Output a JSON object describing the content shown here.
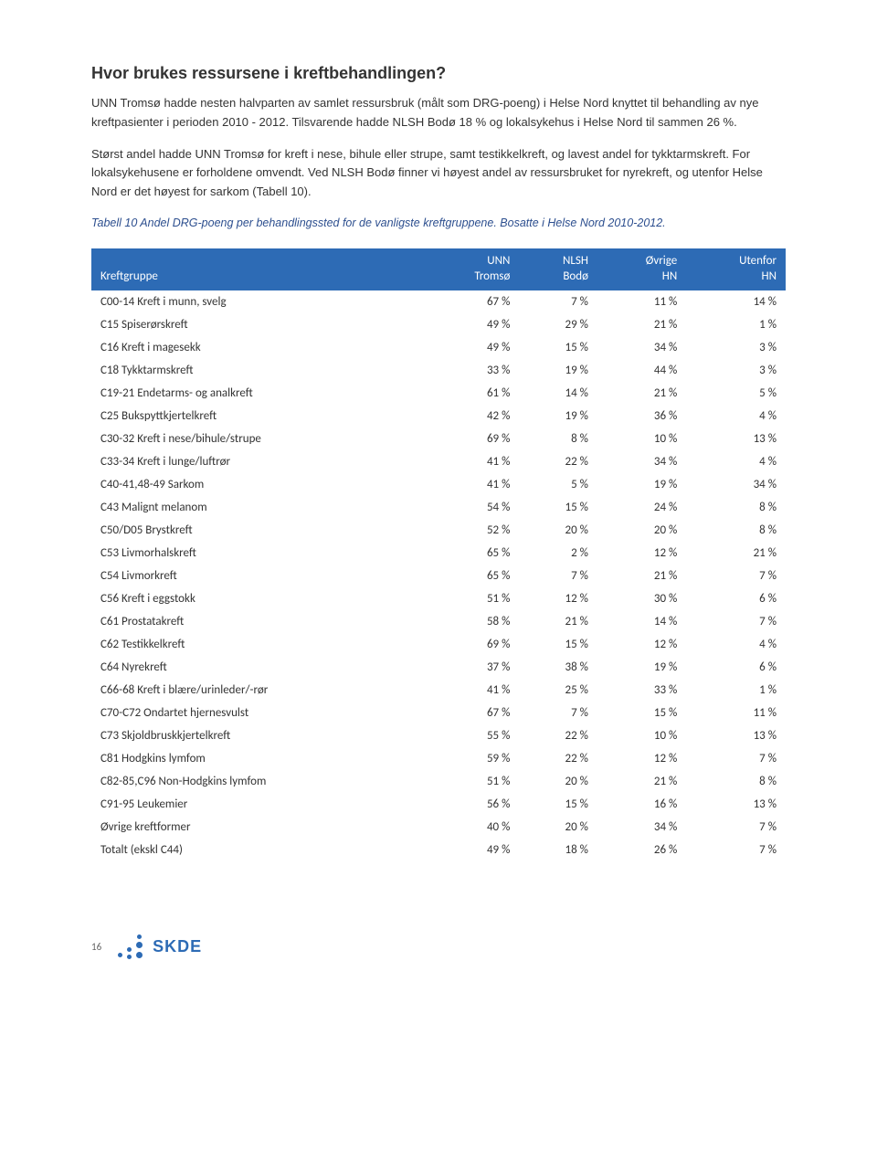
{
  "heading": "Hvor brukes ressursene i kreftbehandlingen?",
  "paragraphs": {
    "p1": "UNN Tromsø hadde nesten halvparten av samlet ressursbruk (målt som DRG-poeng) i Helse Nord knyttet til behandling av nye kreftpasienter i perioden 2010 - 2012. Tilsvarende hadde NLSH Bodø  18 % og lokalsykehus i Helse Nord til sammen 26 %.",
    "p2": "Størst andel hadde UNN Tromsø for kreft i nese, bihule eller strupe, samt testikkelkreft, og lavest andel for tykktarmskreft. For lokalsykehusene er forholdene omvendt. Ved NLSH Bodø finner vi høyest andel av ressursbruket for nyrekreft, og utenfor Helse Nord er det høyest for sarkom (Tabell 10)."
  },
  "caption": "Tabell 10 Andel DRG-poeng per behandlingssted for de vanligste kreftgruppene. Bosatte i Helse Nord 2010-2012.",
  "table": {
    "header_bg": "#2d6bb5",
    "header_fg": "#ffffff",
    "columns": [
      {
        "line1": "",
        "line2": "Kreftgruppe"
      },
      {
        "line1": "UNN",
        "line2": "Tromsø"
      },
      {
        "line1": "NLSH",
        "line2": "Bodø"
      },
      {
        "line1": "Øvrige",
        "line2": "HN"
      },
      {
        "line1": "Utenfor",
        "line2": "HN"
      }
    ],
    "rows": [
      {
        "label": "C00-14 Kreft i munn, svelg",
        "c1": "67 %",
        "c2": "7 %",
        "c3": "11 %",
        "c4": "14 %"
      },
      {
        "label": "C15 Spiserørskreft",
        "c1": "49 %",
        "c2": "29 %",
        "c3": "21 %",
        "c4": "1 %"
      },
      {
        "label": "C16 Kreft i magesekk",
        "c1": "49 %",
        "c2": "15 %",
        "c3": "34 %",
        "c4": "3 %"
      },
      {
        "label": "C18 Tykktarmskreft",
        "c1": "33 %",
        "c2": "19 %",
        "c3": "44 %",
        "c4": "3 %"
      },
      {
        "label": "C19-21 Endetarms- og analkreft",
        "c1": "61 %",
        "c2": "14 %",
        "c3": "21 %",
        "c4": "5 %"
      },
      {
        "label": "C25 Bukspyttkjertelkreft",
        "c1": "42 %",
        "c2": "19 %",
        "c3": "36 %",
        "c4": "4 %"
      },
      {
        "label": "C30-32 Kreft i nese/bihule/strupe",
        "c1": "69 %",
        "c2": "8 %",
        "c3": "10 %",
        "c4": "13 %"
      },
      {
        "label": "C33-34 Kreft i lunge/luftrør",
        "c1": "41 %",
        "c2": "22 %",
        "c3": "34 %",
        "c4": "4 %"
      },
      {
        "label": "C40-41,48-49 Sarkom",
        "c1": "41 %",
        "c2": "5 %",
        "c3": "19 %",
        "c4": "34 %"
      },
      {
        "label": "C43 Malignt melanom",
        "c1": "54 %",
        "c2": "15 %",
        "c3": "24 %",
        "c4": "8 %"
      },
      {
        "label": "C50/D05 Brystkreft",
        "c1": "52 %",
        "c2": "20 %",
        "c3": "20 %",
        "c4": "8 %"
      },
      {
        "label": "C53 Livmorhalskreft",
        "c1": "65 %",
        "c2": "2 %",
        "c3": "12 %",
        "c4": "21 %"
      },
      {
        "label": "C54 Livmorkreft",
        "c1": "65 %",
        "c2": "7 %",
        "c3": "21 %",
        "c4": "7 %"
      },
      {
        "label": "C56 Kreft i eggstokk",
        "c1": "51 %",
        "c2": "12 %",
        "c3": "30 %",
        "c4": "6 %"
      },
      {
        "label": "C61 Prostatakreft",
        "c1": "58 %",
        "c2": "21 %",
        "c3": "14 %",
        "c4": "7 %"
      },
      {
        "label": "C62 Testikkelkreft",
        "c1": "69 %",
        "c2": "15 %",
        "c3": "12 %",
        "c4": "4 %"
      },
      {
        "label": "C64 Nyrekreft",
        "c1": "37 %",
        "c2": "38 %",
        "c3": "19 %",
        "c4": "6 %"
      },
      {
        "label": "C66-68 Kreft i blære/urinleder/-rør",
        "c1": "41 %",
        "c2": "25 %",
        "c3": "33 %",
        "c4": "1 %"
      },
      {
        "label": "C70-C72 Ondartet hjernesvulst",
        "c1": "67 %",
        "c2": "7 %",
        "c3": "15 %",
        "c4": "11 %"
      },
      {
        "label": "C73 Skjoldbruskkjertelkreft",
        "c1": "55 %",
        "c2": "22 %",
        "c3": "10 %",
        "c4": "13 %"
      },
      {
        "label": "C81 Hodgkins lymfom",
        "c1": "59 %",
        "c2": "22 %",
        "c3": "12 %",
        "c4": "7 %"
      },
      {
        "label": "C82-85,C96 Non-Hodgkins lymfom",
        "c1": "51 %",
        "c2": "20 %",
        "c3": "21 %",
        "c4": "8 %"
      },
      {
        "label": "C91-95 Leukemier",
        "c1": "56 %",
        "c2": "15 %",
        "c3": "16 %",
        "c4": "13 %"
      },
      {
        "label": "Øvrige kreftformer",
        "c1": "40 %",
        "c2": "20 %",
        "c3": "34 %",
        "c4": "7 %"
      },
      {
        "label": "Totalt (ekskl C44)",
        "c1": "49 %",
        "c2": "18 %",
        "c3": "26 %",
        "c4": "7 %"
      }
    ]
  },
  "footer": {
    "page_number": "16",
    "logo_text": "SKDE"
  }
}
